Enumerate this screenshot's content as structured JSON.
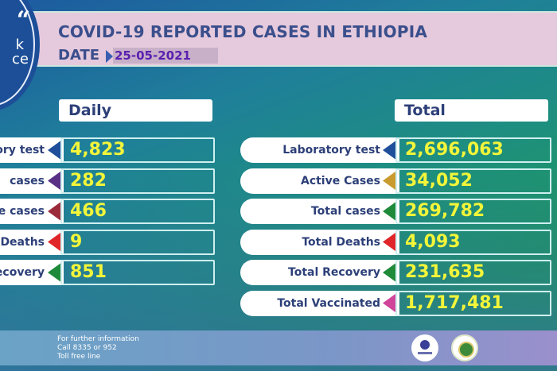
{
  "header": {
    "title": "COVID-19 REPORTED CASES IN ETHIOPIA",
    "date_label": "DATE",
    "date_value": "25-05-2021"
  },
  "badge": {
    "quote_glyph": "“",
    "line1": "k",
    "line2": "ce"
  },
  "daily": {
    "heading": "Daily",
    "rows": [
      {
        "label": "ory test",
        "value": "4,823",
        "arrow_color": "#1f4f9a"
      },
      {
        "label": "cases",
        "value": "282",
        "arrow_color": "#5a2f86"
      },
      {
        "label": "e cases",
        "value": "466",
        "arrow_color": "#9a2a3a"
      },
      {
        "label": "Deaths",
        "value": "9",
        "arrow_color": "#e0262a"
      },
      {
        "label": "ecovery",
        "value": "851",
        "arrow_color": "#1f8a3a"
      }
    ]
  },
  "total": {
    "heading": "Total",
    "rows": [
      {
        "label": "Laboratory test",
        "value": "2,696,063",
        "arrow_color": "#1f4f9a"
      },
      {
        "label": "Active Cases",
        "value": "34,052",
        "arrow_color": "#c99a2e"
      },
      {
        "label": "Total cases",
        "value": "269,782",
        "arrow_color": "#1f8a3a"
      },
      {
        "label": "Total Deaths",
        "value": "4,093",
        "arrow_color": "#e0262a"
      },
      {
        "label": "Total Recovery",
        "value": "231,635",
        "arrow_color": "#1f8a3a"
      },
      {
        "label": "Total Vaccinated",
        "value": "1,717,481",
        "arrow_color": "#d0449a"
      }
    ]
  },
  "footer": {
    "line1": "For further information",
    "line2": "Call 8335 or 952",
    "line3": "Toll free line",
    "logos": [
      "ministry-of-health-logo",
      "ethiopian-public-health-institute-logo"
    ]
  },
  "colors": {
    "value_text": "#f2f53a",
    "label_text": "#2c3f78",
    "header_bg": "#e5c9dc"
  }
}
